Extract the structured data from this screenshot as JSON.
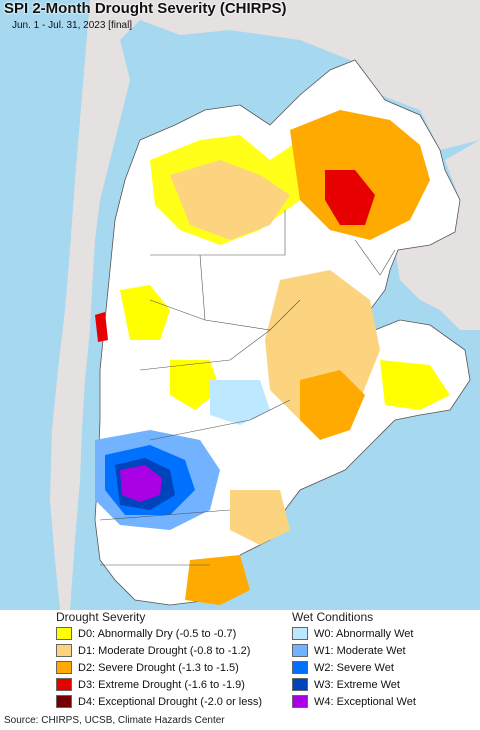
{
  "map": {
    "title": "SPI 2-Month Drought Severity (CHIRPS)",
    "subtitle": "Jun. 1 - Jul. 31, 2023 [final]",
    "colors": {
      "ocean": "#a6d8f0",
      "outside_land": "#e6e1e1",
      "land": "#ffffff",
      "border": "#555555"
    }
  },
  "legend": {
    "drought_heading": "Drought Severity",
    "wet_heading": "Wet Conditions",
    "drought": [
      {
        "code": "D0",
        "label": "D0: Abnormally Dry (-0.5 to -0.7)",
        "color": "#ffff00"
      },
      {
        "code": "D1",
        "label": "D1: Moderate Drought (-0.8 to -1.2)",
        "color": "#fcd37f"
      },
      {
        "code": "D2",
        "label": "D2: Severe Drought (-1.3 to -1.5)",
        "color": "#ffaa00"
      },
      {
        "code": "D3",
        "label": "D3: Extreme Drought (-1.6 to -1.9)",
        "color": "#e60000"
      },
      {
        "code": "D4",
        "label": "D4: Exceptional Drought (-2.0 or less)",
        "color": "#730000"
      }
    ],
    "wet": [
      {
        "code": "W0",
        "label": "W0: Abnormally Wet",
        "color": "#bee8ff"
      },
      {
        "code": "W1",
        "label": "W1: Moderate Wet",
        "color": "#73b2ff"
      },
      {
        "code": "W2",
        "label": "W2: Severe Wet",
        "color": "#0070ff"
      },
      {
        "code": "W3",
        "label": "W3: Extreme Wet",
        "color": "#0044bb"
      },
      {
        "code": "W4",
        "label": "W4: Exceptional Wet",
        "color": "#a900e6"
      }
    ]
  },
  "source": "Source: CHIRPS, UCSB, Climate Hazards Center"
}
